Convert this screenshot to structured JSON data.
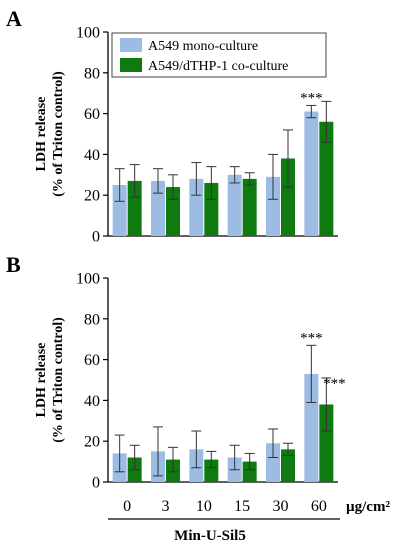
{
  "figure": {
    "x_categories": [
      "0",
      "3",
      "10",
      "15",
      "30",
      "60"
    ],
    "x_unit": "µg/cm²",
    "x_group_label": "Min-U-Sil5"
  },
  "chart_data": [
    {
      "type": "bar",
      "panel": "A",
      "ylabel_line1": "LDH release",
      "ylabel_line2": "(% of Triton control)",
      "ylim": [
        0,
        100
      ],
      "yticks": [
        0,
        20,
        40,
        60,
        80,
        100
      ],
      "categories": [
        "0",
        "3",
        "10",
        "15",
        "30",
        "60"
      ],
      "legend_position": "top",
      "series": [
        {
          "name": "A549 mono-culture",
          "color": "#9dbce4",
          "values": [
            25,
            27,
            28,
            30,
            29,
            61
          ],
          "errors": [
            8,
            6,
            8,
            4,
            11,
            3
          ]
        },
        {
          "name": "A549/dTHP-1 co-culture",
          "color": "#0f7a0f",
          "values": [
            27,
            24,
            26,
            28,
            38,
            56
          ],
          "errors": [
            8,
            6,
            8,
            3,
            14,
            10
          ]
        }
      ],
      "annotations": [
        {
          "text": "***",
          "category": "60",
          "series": 0
        }
      ]
    },
    {
      "type": "bar",
      "panel": "B",
      "ylabel_line1": "LDH release",
      "ylabel_line2": "(% of Triton control)",
      "ylim": [
        0,
        100
      ],
      "yticks": [
        0,
        20,
        40,
        60,
        80,
        100
      ],
      "categories": [
        "0",
        "3",
        "10",
        "15",
        "30",
        "60"
      ],
      "series": [
        {
          "name": "A549 mono-culture",
          "color": "#9dbce4",
          "values": [
            14,
            15,
            16,
            12,
            19,
            53
          ],
          "errors": [
            9,
            12,
            9,
            6,
            7,
            14
          ]
        },
        {
          "name": "A549/dTHP-1 co-culture",
          "color": "#0f7a0f",
          "values": [
            12,
            11,
            11,
            10,
            16,
            38
          ],
          "errors": [
            6,
            6,
            4,
            4,
            3,
            13
          ]
        }
      ],
      "annotations": [
        {
          "text": "***",
          "category": "60",
          "series": 0
        },
        {
          "text": "***",
          "category": "60",
          "series": 1
        }
      ]
    }
  ]
}
